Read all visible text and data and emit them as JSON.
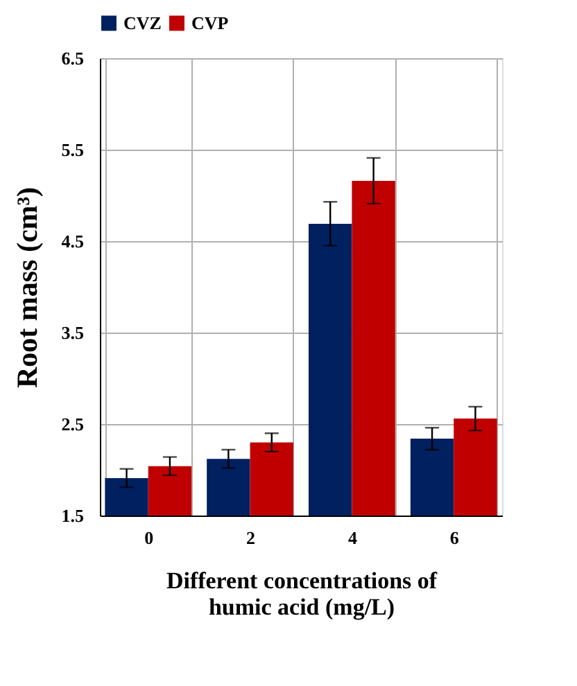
{
  "chart_data": {
    "type": "bar",
    "categories": [
      "0",
      "2",
      "4",
      "6"
    ],
    "series": [
      {
        "name": "CVZ",
        "color": "#002060",
        "values": [
          1.91,
          2.12,
          4.69,
          2.34
        ],
        "errors": [
          0.1,
          0.1,
          0.24,
          0.12
        ]
      },
      {
        "name": "CVP",
        "color": "#c00000",
        "values": [
          2.04,
          2.3,
          5.16,
          2.56
        ],
        "errors": [
          0.1,
          0.1,
          0.25,
          0.13
        ]
      }
    ],
    "ylim": [
      1.5,
      6.5
    ],
    "yticks": [
      1.5,
      2.5,
      3.5,
      4.5,
      5.5,
      6.5
    ],
    "ylabel": "Root mass (cm³)",
    "xlabel": "Different concentrations of humic acid (mg/L)",
    "grid": true,
    "legend": "top"
  }
}
